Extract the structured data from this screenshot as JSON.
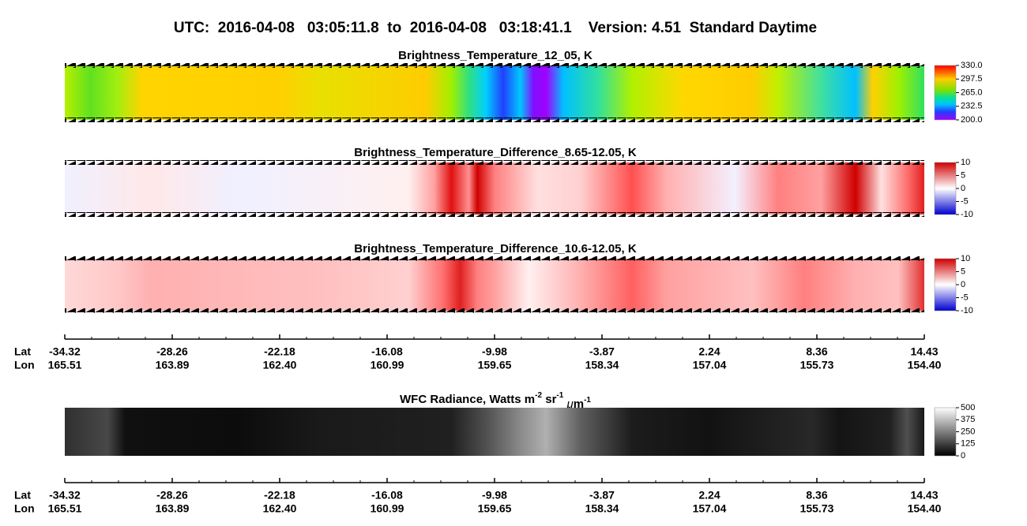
{
  "title": "UTC:  2016-04-08   03:05:11.8  to  2016-04-08   03:18:41.1    Version: 4.51  Standard Daytime",
  "panels": [
    {
      "title": "Brightness_Temperature_12_05, K",
      "colorbar": [
        "330.0",
        "297.5",
        "265.0",
        "232.5",
        "200.0"
      ]
    },
    {
      "title": "Brightness_Temperature_Difference_8.65-12.05, K",
      "colorbar": [
        "10",
        "5",
        "0",
        "-5",
        "-10"
      ]
    },
    {
      "title": "Brightness_Temperature_Difference_10.6-12.05, K",
      "colorbar": [
        "10",
        "5",
        "0",
        "-5",
        "-10"
      ]
    }
  ],
  "radiance": {
    "title_parts": [
      "WFC Radiance, Watts m",
      "-2",
      " sr",
      "-1",
      " ",
      "μ",
      "m",
      "-1"
    ],
    "colorbar": [
      "500",
      "375",
      "250",
      "125",
      "0"
    ]
  },
  "axes": [
    {
      "lat_label": "Lat",
      "lon_label": "Lon",
      "lat": [
        "-34.32",
        "-28.26",
        "-22.18",
        "-16.08",
        "-9.98",
        "-3.87",
        "2.24",
        "8.36",
        "14.43"
      ],
      "lon": [
        "165.51",
        "163.89",
        "162.40",
        "160.99",
        "159.65",
        "158.34",
        "157.04",
        "155.73",
        "154.40"
      ]
    },
    {
      "lat_label": "Lat",
      "lon_label": "Lon",
      "lat": [
        "-34.32",
        "-28.26",
        "-22.18",
        "-16.08",
        "-9.98",
        "-3.87",
        "2.24",
        "8.36",
        "14.43"
      ],
      "lon": [
        "165.51",
        "163.89",
        "162.40",
        "160.99",
        "159.65",
        "158.34",
        "157.04",
        "155.73",
        "154.40"
      ]
    }
  ]
}
